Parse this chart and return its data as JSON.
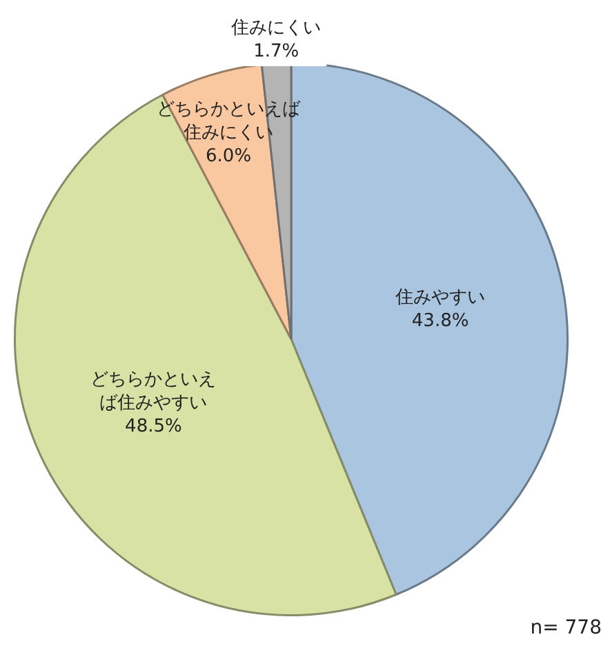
{
  "chart_data": {
    "type": "pie",
    "categories": [
      "住みやすい",
      "どちらかといえば住みやすい",
      "どちらかといえば住みにくい",
      "住みにくい"
    ],
    "values": [
      43.8,
      48.5,
      6.0,
      1.7
    ],
    "colors": [
      "#a9c5e0",
      "#d7e2a4",
      "#f9c8a0",
      "#b4b4b4"
    ],
    "value_labels": [
      "43.8%",
      "48.5%",
      "6.0%",
      "1.7%"
    ],
    "annotations": [
      "n= 778"
    ],
    "legend": false
  }
}
